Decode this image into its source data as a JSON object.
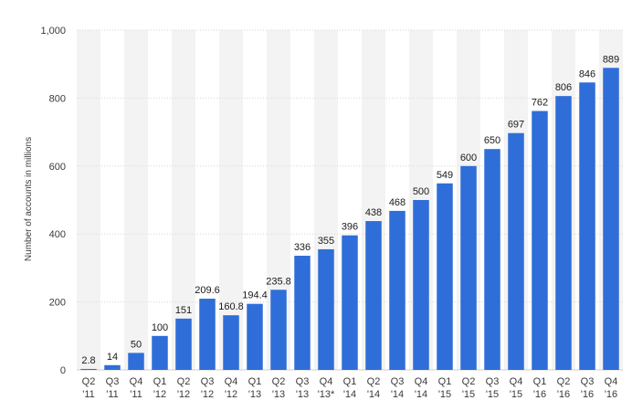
{
  "chart_data": {
    "type": "bar",
    "ylabel": "Number of accounts in millions",
    "xlabel": "",
    "ylim": [
      0,
      1000
    ],
    "yticks": [
      0,
      200,
      400,
      600,
      800,
      1000
    ],
    "ytick_labels": [
      "0",
      "200",
      "400",
      "600",
      "800",
      "1,000"
    ],
    "grid": true,
    "bar_color": "#2f6ed8",
    "band_color": "#f3f3f3",
    "categories": [
      [
        "Q2",
        "'11"
      ],
      [
        "Q3",
        "'11"
      ],
      [
        "Q4",
        "'11"
      ],
      [
        "Q1",
        "'12"
      ],
      [
        "Q2",
        "'12"
      ],
      [
        "Q3",
        "'12"
      ],
      [
        "Q4",
        "'12"
      ],
      [
        "Q1",
        "'13"
      ],
      [
        "Q2",
        "'13"
      ],
      [
        "Q3",
        "'13"
      ],
      [
        "Q4",
        "'13*"
      ],
      [
        "Q1",
        "'14"
      ],
      [
        "Q2",
        "'14"
      ],
      [
        "Q3",
        "'14"
      ],
      [
        "Q4",
        "'14"
      ],
      [
        "Q1",
        "'15"
      ],
      [
        "Q2",
        "'15"
      ],
      [
        "Q3",
        "'15"
      ],
      [
        "Q4",
        "'15"
      ],
      [
        "Q1",
        "'16"
      ],
      [
        "Q2",
        "'16"
      ],
      [
        "Q3",
        "'16"
      ],
      [
        "Q4",
        "'16"
      ]
    ],
    "values": [
      2.8,
      14,
      50,
      100,
      151,
      209.6,
      160.8,
      194.4,
      235.8,
      336,
      355,
      396,
      438,
      468,
      500,
      549,
      600,
      650,
      697,
      762,
      806,
      846,
      889
    ],
    "value_labels": [
      "2.8",
      "14",
      "50",
      "100",
      "151",
      "209.6",
      "160.8",
      "194.4",
      "235.8",
      "336",
      "355",
      "396",
      "438",
      "468",
      "500",
      "549",
      "600",
      "650",
      "697",
      "762",
      "806",
      "846",
      "889"
    ]
  }
}
